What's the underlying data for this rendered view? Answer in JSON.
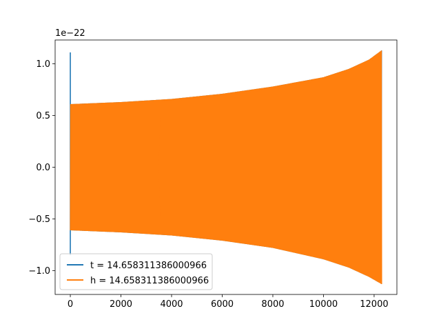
{
  "chart_data": {
    "type": "line",
    "title": "",
    "xlabel": "",
    "ylabel": "",
    "y_offset_label": "1e−22",
    "xlim": [
      -600,
      12900
    ],
    "ylim": [
      -1.23,
      1.23
    ],
    "xticks": [
      0,
      2000,
      4000,
      6000,
      8000,
      10000,
      12000
    ],
    "xtick_labels": [
      "0",
      "2000",
      "4000",
      "6000",
      "8000",
      "10000",
      "12000"
    ],
    "yticks": [
      -1.0,
      -0.5,
      0.0,
      0.5,
      1.0
    ],
    "ytick_labels": [
      "−1.0",
      "−0.5",
      "0.0",
      "0.5",
      "1.0"
    ],
    "grid": false,
    "legend_position": "lower-left",
    "series": [
      {
        "name": "t = 14.658311386000966",
        "color": "#1f77b4",
        "description_points": {
          "x": [
            0,
            0
          ],
          "y": [
            1.11,
            -0.85
          ]
        }
      },
      {
        "name": "h = 14.658311386000966",
        "color": "#ff7f0e",
        "envelope": {
          "x": [
            0,
            2000,
            4000,
            6000,
            8000,
            10000,
            11000,
            11800,
            12300
          ],
          "upper": [
            0.61,
            0.63,
            0.66,
            0.71,
            0.78,
            0.87,
            0.95,
            1.04,
            1.13
          ],
          "lower": [
            -0.61,
            -0.63,
            -0.66,
            -0.71,
            -0.78,
            -0.89,
            -0.97,
            -1.06,
            -1.13
          ]
        }
      }
    ]
  }
}
